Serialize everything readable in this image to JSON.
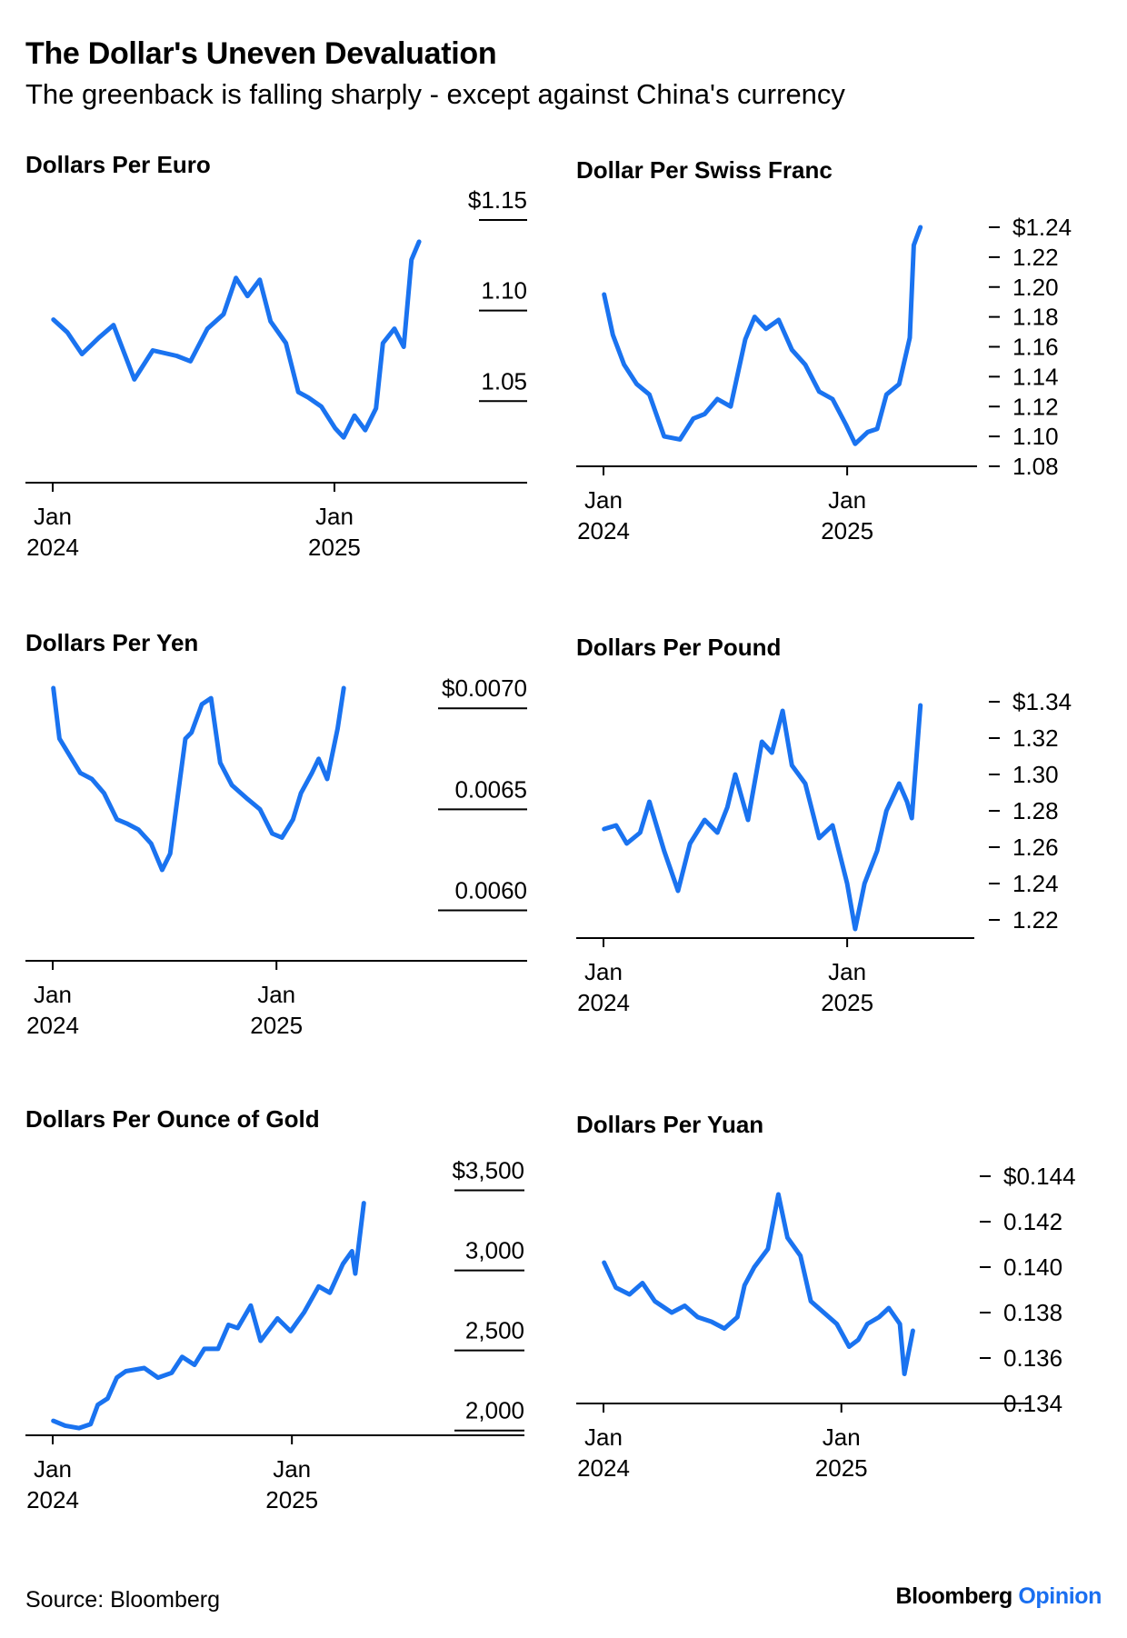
{
  "title": "The Dollar's Uneven Devaluation",
  "subtitle": "The greenback is falling sharply - except against China's currency",
  "source": "Source: Bloomberg",
  "brand": {
    "name": "Bloomberg",
    "suffix": "Opinion",
    "suffix_color": "#1a6ff0"
  },
  "line_color": "#1a73f0",
  "chart_data": [
    {
      "type": "line",
      "title": "Dollars Per Euro",
      "x": [
        "2024-01-02",
        "2024-01-20",
        "2024-02-08",
        "2024-03-01",
        "2024-03-20",
        "2024-04-16",
        "2024-05-10",
        "2024-06-10",
        "2024-06-28",
        "2024-07-20",
        "2024-08-10",
        "2024-08-26",
        "2024-09-10",
        "2024-09-26",
        "2024-10-10",
        "2024-10-30",
        "2024-11-15",
        "2024-11-28",
        "2024-12-15",
        "2025-01-02",
        "2025-01-13",
        "2025-01-27",
        "2025-02-10",
        "2025-02-24",
        "2025-03-05",
        "2025-03-20",
        "2025-04-01",
        "2025-04-11",
        "2025-04-21"
      ],
      "y": [
        1.095,
        1.088,
        1.076,
        1.085,
        1.092,
        1.062,
        1.078,
        1.075,
        1.072,
        1.09,
        1.098,
        1.118,
        1.108,
        1.117,
        1.094,
        1.082,
        1.055,
        1.052,
        1.047,
        1.035,
        1.03,
        1.042,
        1.034,
        1.046,
        1.082,
        1.09,
        1.08,
        1.128,
        1.138
      ],
      "x_ticks": [
        {
          "label": "Jan",
          "sub": "2024",
          "date": "2024-01-01"
        },
        {
          "label": "Jan",
          "sub": "2025",
          "date": "2025-01-01"
        }
      ],
      "y_ticks": [
        {
          "v": 1.15,
          "label": "$1.15"
        },
        {
          "v": 1.1,
          "label": "1.10"
        },
        {
          "v": 1.05,
          "label": "1.05"
        }
      ],
      "ylim": [
        1.005,
        1.155
      ],
      "xlim": [
        "2023-12-25",
        "2025-05-31"
      ],
      "tick_style": "underline"
    },
    {
      "type": "line",
      "title": "Dollar Per Swiss Franc",
      "x": [
        "2024-01-02",
        "2024-01-15",
        "2024-02-01",
        "2024-02-20",
        "2024-03-10",
        "2024-04-01",
        "2024-04-25",
        "2024-05-15",
        "2024-06-01",
        "2024-06-20",
        "2024-07-10",
        "2024-08-01",
        "2024-08-15",
        "2024-09-01",
        "2024-09-20",
        "2024-10-10",
        "2024-10-30",
        "2024-11-20",
        "2024-12-10",
        "2024-12-30",
        "2025-01-13",
        "2025-02-01",
        "2025-02-15",
        "2025-03-01",
        "2025-03-20",
        "2025-04-05",
        "2025-04-11",
        "2025-04-21"
      ],
      "y": [
        1.195,
        1.168,
        1.148,
        1.135,
        1.128,
        1.1,
        1.098,
        1.112,
        1.115,
        1.125,
        1.12,
        1.165,
        1.18,
        1.172,
        1.178,
        1.158,
        1.148,
        1.13,
        1.125,
        1.108,
        1.095,
        1.103,
        1.105,
        1.128,
        1.135,
        1.166,
        1.228,
        1.24
      ],
      "x_ticks": [
        {
          "label": "Jan",
          "sub": "2024",
          "date": "2024-01-01"
        },
        {
          "label": "Jan",
          "sub": "2025",
          "date": "2025-01-01"
        }
      ],
      "y_ticks": [
        {
          "v": 1.24,
          "label": "$1.24"
        },
        {
          "v": 1.22,
          "label": "1.22"
        },
        {
          "v": 1.2,
          "label": "1.20"
        },
        {
          "v": 1.18,
          "label": "1.18"
        },
        {
          "v": 1.16,
          "label": "1.16"
        },
        {
          "v": 1.14,
          "label": "1.14"
        },
        {
          "v": 1.12,
          "label": "1.12"
        },
        {
          "v": 1.1,
          "label": "1.10"
        },
        {
          "v": 1.08,
          "label": "1.08"
        }
      ],
      "ylim": [
        1.08,
        1.24
      ],
      "xlim": [
        "2023-12-25",
        "2025-05-31"
      ],
      "tick_style": "dash"
    },
    {
      "type": "line",
      "title": "Dollars Per Yen",
      "x": [
        "2024-01-02",
        "2024-01-12",
        "2024-02-01",
        "2024-02-15",
        "2024-03-05",
        "2024-03-25",
        "2024-04-15",
        "2024-05-01",
        "2024-05-20",
        "2024-06-10",
        "2024-06-28",
        "2024-07-11",
        "2024-07-25",
        "2024-08-05",
        "2024-08-15",
        "2024-09-01",
        "2024-09-16",
        "2024-10-01",
        "2024-10-20",
        "2024-11-15",
        "2024-12-05",
        "2024-12-25",
        "2025-01-10",
        "2025-01-28",
        "2025-02-10",
        "2025-02-28",
        "2025-03-11",
        "2025-03-25",
        "2025-04-11",
        "2025-04-21"
      ],
      "y": [
        0.0071,
        0.00685,
        0.00675,
        0.00668,
        0.00665,
        0.00658,
        0.00645,
        0.00643,
        0.0064,
        0.00633,
        0.0062,
        0.00628,
        0.0066,
        0.00685,
        0.00688,
        0.00702,
        0.00705,
        0.00673,
        0.00662,
        0.00655,
        0.0065,
        0.00638,
        0.00636,
        0.00645,
        0.00658,
        0.00668,
        0.00675,
        0.00665,
        0.0069,
        0.0071
      ],
      "x_ticks": [
        {
          "label": "Jan",
          "sub": "2024",
          "date": "2024-01-01"
        },
        {
          "label": "Jan",
          "sub": "2025",
          "date": "2025-01-01"
        }
      ],
      "y_ticks": [
        {
          "v": 0.007,
          "label": "$0.0070"
        },
        {
          "v": 0.0065,
          "label": "0.0065"
        },
        {
          "v": 0.006,
          "label": "0.0060"
        }
      ],
      "ylim": [
        0.00575,
        0.0071
      ],
      "xlim": [
        "2023-12-25",
        "2025-07-10"
      ],
      "tick_style": "underline"
    },
    {
      "type": "line",
      "title": "Dollars Per Pound",
      "x": [
        "2024-01-02",
        "2024-01-20",
        "2024-02-05",
        "2024-02-25",
        "2024-03-10",
        "2024-04-01",
        "2024-04-22",
        "2024-05-10",
        "2024-06-01",
        "2024-06-20",
        "2024-07-05",
        "2024-07-17",
        "2024-08-05",
        "2024-08-26",
        "2024-09-10",
        "2024-09-26",
        "2024-10-10",
        "2024-10-30",
        "2024-11-20",
        "2024-12-10",
        "2025-01-01",
        "2025-01-13",
        "2025-01-27",
        "2025-02-15",
        "2025-03-01",
        "2025-03-20",
        "2025-04-01",
        "2025-04-08",
        "2025-04-21"
      ],
      "y": [
        1.27,
        1.272,
        1.262,
        1.268,
        1.285,
        1.258,
        1.236,
        1.262,
        1.275,
        1.268,
        1.282,
        1.3,
        1.275,
        1.318,
        1.312,
        1.335,
        1.305,
        1.295,
        1.265,
        1.272,
        1.24,
        1.215,
        1.24,
        1.258,
        1.28,
        1.295,
        1.285,
        1.276,
        1.338
      ],
      "x_ticks": [
        {
          "label": "Jan",
          "sub": "2024",
          "date": "2024-01-01"
        },
        {
          "label": "Jan",
          "sub": "2025",
          "date": "2025-01-01"
        }
      ],
      "y_ticks": [
        {
          "v": 1.34,
          "label": "$1.34"
        },
        {
          "v": 1.32,
          "label": "1.32"
        },
        {
          "v": 1.3,
          "label": "1.30"
        },
        {
          "v": 1.28,
          "label": "1.28"
        },
        {
          "v": 1.26,
          "label": "1.26"
        },
        {
          "v": 1.24,
          "label": "1.24"
        },
        {
          "v": 1.22,
          "label": "1.22"
        }
      ],
      "ylim": [
        1.21,
        1.34
      ],
      "xlim": [
        "2023-12-25",
        "2025-05-31"
      ],
      "tick_style": "dash"
    },
    {
      "type": "line",
      "title": "Dollars Per Ounce of Gold",
      "x": [
        "2024-01-02",
        "2024-01-20",
        "2024-02-10",
        "2024-02-28",
        "2024-03-10",
        "2024-03-25",
        "2024-04-08",
        "2024-04-22",
        "2024-05-20",
        "2024-06-10",
        "2024-07-01",
        "2024-07-17",
        "2024-08-05",
        "2024-08-20",
        "2024-09-10",
        "2024-09-26",
        "2024-10-10",
        "2024-10-30",
        "2024-11-14",
        "2024-12-10",
        "2024-12-30",
        "2025-01-20",
        "2025-02-11",
        "2025-02-28",
        "2025-03-20",
        "2025-04-03",
        "2025-04-08",
        "2025-04-21"
      ],
      "y": [
        2060,
        2030,
        2015,
        2040,
        2160,
        2200,
        2330,
        2370,
        2390,
        2330,
        2360,
        2460,
        2410,
        2510,
        2510,
        2660,
        2640,
        2780,
        2560,
        2700,
        2620,
        2740,
        2900,
        2860,
        3040,
        3120,
        2980,
        3420
      ],
      "x_ticks": [
        {
          "label": "Jan",
          "sub": "2024",
          "date": "2024-01-01"
        },
        {
          "label": "Jan",
          "sub": "2025",
          "date": "2025-01-01"
        }
      ],
      "y_ticks": [
        {
          "v": 3500,
          "label": "$3,500"
        },
        {
          "v": 3000,
          "label": "3,000"
        },
        {
          "v": 2500,
          "label": "2,500"
        },
        {
          "v": 2000,
          "label": "2,000"
        }
      ],
      "ylim": [
        1970,
        3520
      ],
      "xlim": [
        "2023-12-25",
        "2025-06-25"
      ],
      "tick_style": "underline"
    },
    {
      "type": "line",
      "title": "Dollars Per Yuan",
      "x": [
        "2024-01-02",
        "2024-01-20",
        "2024-02-10",
        "2024-03-01",
        "2024-03-20",
        "2024-04-15",
        "2024-05-05",
        "2024-05-25",
        "2024-06-15",
        "2024-07-05",
        "2024-07-25",
        "2024-08-05",
        "2024-08-20",
        "2024-09-10",
        "2024-09-26",
        "2024-10-10",
        "2024-10-30",
        "2024-11-15",
        "2024-12-05",
        "2024-12-25",
        "2025-01-13",
        "2025-01-27",
        "2025-02-10",
        "2025-02-28",
        "2025-03-15",
        "2025-04-01",
        "2025-04-08",
        "2025-04-21"
      ],
      "y": [
        0.1402,
        0.1391,
        0.1388,
        0.1393,
        0.1385,
        0.138,
        0.1383,
        0.1378,
        0.1376,
        0.1373,
        0.1378,
        0.1392,
        0.14,
        0.1408,
        0.1432,
        0.1413,
        0.1405,
        0.1385,
        0.138,
        0.1375,
        0.1365,
        0.1368,
        0.1375,
        0.1378,
        0.1382,
        0.1375,
        0.1353,
        0.1372
      ],
      "x_ticks": [
        {
          "label": "Jan",
          "sub": "2024",
          "date": "2024-01-01"
        },
        {
          "label": "Jan",
          "sub": "2025",
          "date": "2025-01-01"
        }
      ],
      "y_ticks": [
        {
          "v": 0.144,
          "label": "$0.144"
        },
        {
          "v": 0.142,
          "label": "0.142"
        },
        {
          "v": 0.14,
          "label": "0.140"
        },
        {
          "v": 0.138,
          "label": "0.138"
        },
        {
          "v": 0.136,
          "label": "0.136"
        },
        {
          "v": 0.134,
          "label": "0.134"
        }
      ],
      "ylim": [
        0.134,
        0.144
      ],
      "xlim": [
        "2023-12-25",
        "2025-05-31"
      ],
      "tick_style": "dash"
    }
  ]
}
